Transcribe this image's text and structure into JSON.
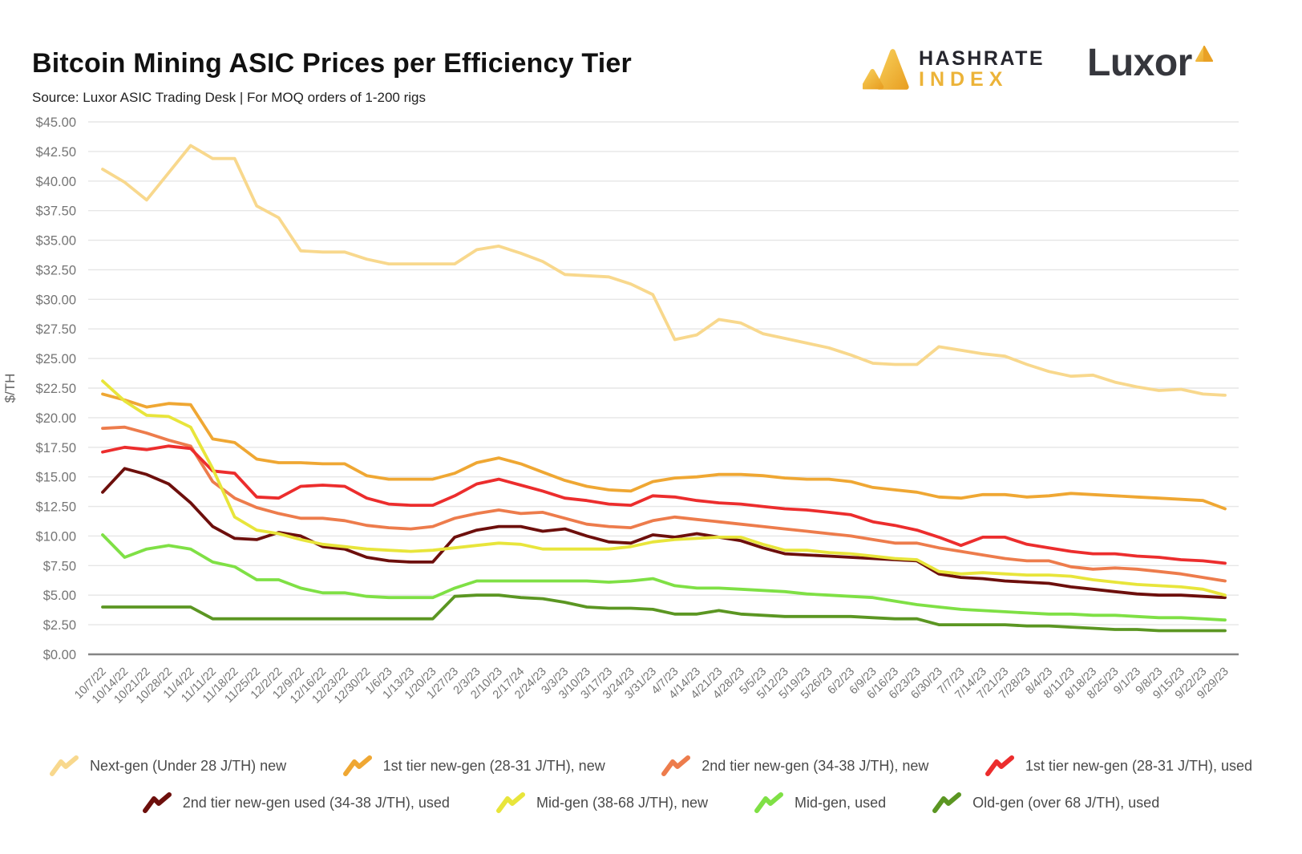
{
  "header": {
    "title": "Bitcoin Mining ASIC Prices per Efficiency Tier",
    "source": "Source: Luxor ASIC Trading Desk | For MOQ orders of 1-200 rigs"
  },
  "logos": {
    "hashrate_word1": "HASHRATE",
    "hashrate_word2": "INDEX",
    "luxor": "Luxor"
  },
  "colors": {
    "grid": "#e6e6e6",
    "axis": "#858585",
    "tick_label": "#757575",
    "y_axis_title": "#666666",
    "legend_text": "#4a4a4a",
    "brand_gold": "#ecb338"
  },
  "chart_data": {
    "type": "line",
    "title": "Bitcoin Mining ASIC Prices per Efficiency Tier",
    "xlabel": "",
    "ylabel": "$/TH",
    "ylim": [
      0,
      45
    ],
    "ytick_step": 2.5,
    "grid": "horizontal",
    "legend_position": "bottom",
    "legend_rows": [
      [
        0,
        1,
        2,
        3
      ],
      [
        4,
        5,
        6,
        7
      ]
    ],
    "x": [
      "10/7/22",
      "10/14/22",
      "10/21/22",
      "10/28/22",
      "11/4/22",
      "11/11/22",
      "11/18/22",
      "11/25/22",
      "12/2/22",
      "12/9/22",
      "12/16/22",
      "12/23/22",
      "12/30/22",
      "1/6/23",
      "1/13/23",
      "1/20/23",
      "1/27/23",
      "2/3/23",
      "2/10/23",
      "2/17/24",
      "2/24/23",
      "3/3/23",
      "3/10/23",
      "3/17/23",
      "3/24/23",
      "3/31/23",
      "4/7/23",
      "4/14/23",
      "4/21/23",
      "4/28/23",
      "5/5/23",
      "5/12/23",
      "5/19/23",
      "5/26/23",
      "6/2/23",
      "6/9/23",
      "6/16/23",
      "6/23/23",
      "6/30/23",
      "7/7/23",
      "7/14/23",
      "7/21/23",
      "7/28/23",
      "8/4/23",
      "8/11/23",
      "8/18/23",
      "8/25/23",
      "9/1/23",
      "9/8/23",
      "9/15/23",
      "9/22/23",
      "9/29/23"
    ],
    "series": [
      {
        "name": "Next-gen (Under 28 J/TH) new",
        "color": "#F8D88D",
        "values": [
          41.0,
          39.9,
          38.4,
          40.7,
          43.0,
          41.9,
          41.9,
          37.9,
          36.9,
          34.1,
          34.0,
          34.0,
          33.4,
          33.0,
          33.0,
          33.0,
          33.0,
          34.2,
          34.5,
          33.9,
          33.2,
          32.1,
          32.0,
          31.9,
          31.3,
          30.4,
          26.6,
          27.0,
          28.3,
          28.0,
          27.1,
          26.7,
          26.3,
          25.9,
          25.3,
          24.6,
          24.5,
          24.5,
          26.0,
          25.7,
          25.4,
          25.2,
          24.5,
          23.9,
          23.5,
          23.6,
          23.0,
          22.6,
          22.3,
          22.4,
          22.0,
          21.9
        ]
      },
      {
        "name": "1st tier new-gen (28-31 J/TH), new",
        "color": "#EFA733",
        "values": [
          22.0,
          21.5,
          20.9,
          21.2,
          21.1,
          18.2,
          17.9,
          16.5,
          16.2,
          16.2,
          16.1,
          16.1,
          15.1,
          14.8,
          14.8,
          14.8,
          15.3,
          16.2,
          16.6,
          16.1,
          15.4,
          14.7,
          14.2,
          13.9,
          13.8,
          14.6,
          14.9,
          15.0,
          15.2,
          15.2,
          15.1,
          14.9,
          14.8,
          14.8,
          14.6,
          14.1,
          13.9,
          13.7,
          13.3,
          13.2,
          13.5,
          13.5,
          13.3,
          13.4,
          13.6,
          13.5,
          13.4,
          13.3,
          13.2,
          13.1,
          13.0,
          12.3
        ]
      },
      {
        "name": "2nd tier new-gen (34-38 J/TH), new",
        "color": "#ED7C4C",
        "values": [
          19.1,
          19.2,
          18.7,
          18.1,
          17.6,
          14.6,
          13.2,
          12.4,
          11.9,
          11.5,
          11.5,
          11.3,
          10.9,
          10.7,
          10.6,
          10.8,
          11.5,
          11.9,
          12.2,
          11.9,
          12.0,
          11.5,
          11.0,
          10.8,
          10.7,
          11.3,
          11.6,
          11.4,
          11.2,
          11.0,
          10.8,
          10.6,
          10.4,
          10.2,
          10.0,
          9.7,
          9.4,
          9.4,
          9.0,
          8.7,
          8.4,
          8.1,
          7.9,
          7.9,
          7.4,
          7.2,
          7.3,
          7.2,
          7.0,
          6.8,
          6.5,
          6.2
        ]
      },
      {
        "name": "1st tier new-gen (28-31 J/TH), used",
        "color": "#EC2D2D",
        "values": [
          17.1,
          17.5,
          17.3,
          17.6,
          17.4,
          15.5,
          15.3,
          13.3,
          13.2,
          14.2,
          14.3,
          14.2,
          13.2,
          12.7,
          12.6,
          12.6,
          13.4,
          14.4,
          14.8,
          14.3,
          13.8,
          13.2,
          13.0,
          12.7,
          12.6,
          13.4,
          13.3,
          13.0,
          12.8,
          12.7,
          12.5,
          12.3,
          12.2,
          12.0,
          11.8,
          11.2,
          10.9,
          10.5,
          9.9,
          9.2,
          9.9,
          9.9,
          9.3,
          9.0,
          8.7,
          8.5,
          8.5,
          8.3,
          8.2,
          8.0,
          7.9,
          7.7
        ]
      },
      {
        "name": "2nd tier new-gen used (34-38 J/TH), used",
        "color": "#6D0F0C",
        "values": [
          13.7,
          15.7,
          15.2,
          14.4,
          12.8,
          10.8,
          9.8,
          9.7,
          10.3,
          10.0,
          9.1,
          8.9,
          8.2,
          7.9,
          7.8,
          7.8,
          9.9,
          10.5,
          10.8,
          10.8,
          10.4,
          10.6,
          10.0,
          9.5,
          9.4,
          10.1,
          9.9,
          10.2,
          9.9,
          9.6,
          9.0,
          8.5,
          8.4,
          8.3,
          8.2,
          8.1,
          8.0,
          7.9,
          6.8,
          6.5,
          6.4,
          6.2,
          6.1,
          6.0,
          5.7,
          5.5,
          5.3,
          5.1,
          5.0,
          5.0,
          4.9,
          4.8
        ]
      },
      {
        "name": "Mid-gen (38-68 J/TH), new",
        "color": "#E8E53B",
        "values": [
          23.1,
          21.4,
          20.2,
          20.1,
          19.2,
          15.7,
          11.6,
          10.5,
          10.2,
          9.7,
          9.3,
          9.1,
          8.9,
          8.8,
          8.7,
          8.8,
          9.0,
          9.2,
          9.4,
          9.3,
          8.9,
          8.9,
          8.9,
          8.9,
          9.1,
          9.5,
          9.7,
          9.8,
          9.9,
          9.9,
          9.3,
          8.8,
          8.8,
          8.6,
          8.5,
          8.3,
          8.1,
          8.0,
          7.0,
          6.8,
          6.9,
          6.8,
          6.7,
          6.7,
          6.6,
          6.3,
          6.1,
          5.9,
          5.8,
          5.7,
          5.5,
          5.0
        ]
      },
      {
        "name": "Mid-gen, used",
        "color": "#7FE045",
        "values": [
          10.1,
          8.2,
          8.9,
          9.2,
          8.9,
          7.8,
          7.4,
          6.3,
          6.3,
          5.6,
          5.2,
          5.2,
          4.9,
          4.8,
          4.8,
          4.8,
          5.6,
          6.2,
          6.2,
          6.2,
          6.2,
          6.2,
          6.2,
          6.1,
          6.2,
          6.4,
          5.8,
          5.6,
          5.6,
          5.5,
          5.4,
          5.3,
          5.1,
          5.0,
          4.9,
          4.8,
          4.5,
          4.2,
          4.0,
          3.8,
          3.7,
          3.6,
          3.5,
          3.4,
          3.4,
          3.3,
          3.3,
          3.2,
          3.1,
          3.1,
          3.0,
          2.9
        ]
      },
      {
        "name": "Old-gen (over 68 J/TH), used",
        "color": "#5B9622",
        "values": [
          4.0,
          4.0,
          4.0,
          4.0,
          4.0,
          3.0,
          3.0,
          3.0,
          3.0,
          3.0,
          3.0,
          3.0,
          3.0,
          3.0,
          3.0,
          3.0,
          4.9,
          5.0,
          5.0,
          4.8,
          4.7,
          4.4,
          4.0,
          3.9,
          3.9,
          3.8,
          3.4,
          3.4,
          3.7,
          3.4,
          3.3,
          3.2,
          3.2,
          3.2,
          3.2,
          3.1,
          3.0,
          3.0,
          2.5,
          2.5,
          2.5,
          2.5,
          2.4,
          2.4,
          2.3,
          2.2,
          2.1,
          2.1,
          2.0,
          2.0,
          2.0,
          2.0
        ]
      }
    ]
  }
}
